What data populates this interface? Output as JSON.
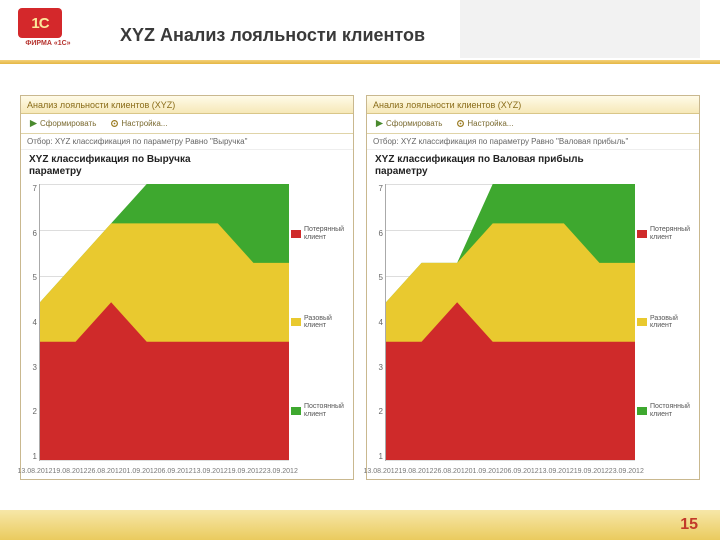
{
  "slide": {
    "title": "XYZ Анализ лояльности клиентов",
    "page_number": "15",
    "logo_text": "1C",
    "logo_sub": "ФИРМА «1С»",
    "logo_bg": "#d4282b",
    "logo_fg": "#fbe79a"
  },
  "panels": [
    {
      "window_title": "Анализ лояльности клиентов (XYZ)",
      "toolbar_format": "Сформировать",
      "toolbar_settings": "Настройка...",
      "filter_line": "Отбор:  XYZ классификация по параметру Равно \"Выручка\"",
      "chart_title_l1": "XYZ классификация по  Выручка",
      "chart_title_l2": "параметру",
      "series": {
        "red": {
          "color": "#cf2a2a",
          "label": "Потерянный клиент",
          "values": [
            3,
            3,
            4,
            3,
            3,
            3,
            3,
            3
          ]
        },
        "yellow": {
          "color": "#e9c92f",
          "label": "Разовый клиент",
          "values": [
            1,
            2,
            2,
            3,
            3,
            3,
            2,
            2
          ]
        },
        "green": {
          "color": "#3ea82f",
          "label": "Постоянный клиент",
          "values": [
            0,
            0,
            0,
            1,
            1,
            1,
            2,
            2
          ]
        }
      },
      "y_ticks": [
        "7",
        "6",
        "5",
        "4",
        "3",
        "2",
        "1"
      ],
      "y_max": 7,
      "x_labels": [
        "13.08.2012",
        "19.08.2012",
        "26.08.2012",
        "01.09.2012",
        "06.09.2012",
        "13.09.2012",
        "19.09.2012",
        "23.09.2012"
      ],
      "grid_color": "#dddddd"
    },
    {
      "window_title": "Анализ лояльности клиентов (XYZ)",
      "toolbar_format": "Сформировать",
      "toolbar_settings": "Настройка...",
      "filter_line": "Отбор:  XYZ классификация по параметру Равно \"Валовая прибыль\"",
      "chart_title_l1": "XYZ классификация по  Валовая прибыль",
      "chart_title_l2": "параметру",
      "series": {
        "red": {
          "color": "#cf2a2a",
          "label": "Потерянный клиент",
          "values": [
            3,
            3,
            4,
            3,
            3,
            3,
            3,
            3
          ]
        },
        "yellow": {
          "color": "#e9c92f",
          "label": "Разовый клиент",
          "values": [
            1,
            2,
            1,
            3,
            3,
            3,
            2,
            2
          ]
        },
        "green": {
          "color": "#3ea82f",
          "label": "Постоянный клиент",
          "values": [
            0,
            0,
            0,
            1,
            1,
            1,
            2,
            2
          ]
        }
      },
      "y_ticks": [
        "7",
        "6",
        "5",
        "4",
        "3",
        "2",
        "1"
      ],
      "y_max": 7,
      "x_labels": [
        "13.08.2012",
        "19.08.2012",
        "26.08.2012",
        "01.09.2012",
        "06.09.2012",
        "13.09.2012",
        "19.09.2012",
        "23.09.2012"
      ],
      "grid_color": "#dddddd"
    }
  ]
}
